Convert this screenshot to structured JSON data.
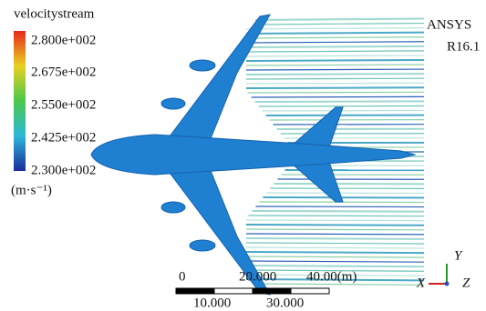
{
  "legend": {
    "title": "velocitystream",
    "labels": [
      "2.800e+002",
      "2.675e+002",
      "2.550e+002",
      "2.425e+002",
      "2.300e+002"
    ],
    "unit": "(m·s⁻¹)"
  },
  "branding": {
    "name": "ANSYS",
    "version": "R16.1"
  },
  "scale_bar": {
    "top_labels": [
      "0",
      "20.000",
      "40.00(m)"
    ],
    "bottom_labels": [
      "10.000",
      "30.000"
    ]
  },
  "axes": {
    "x": "X",
    "y": "Y",
    "z": "Z"
  }
}
